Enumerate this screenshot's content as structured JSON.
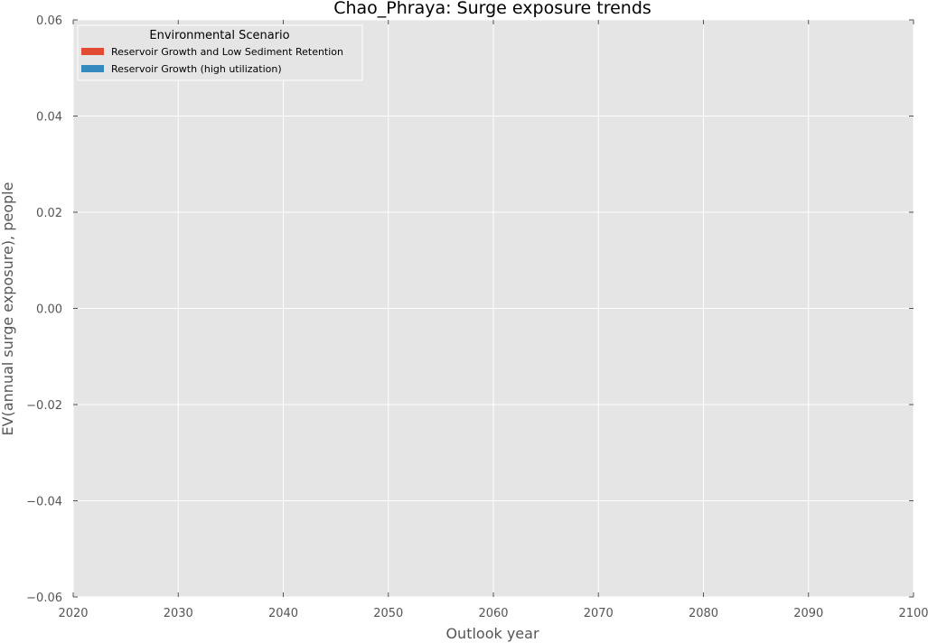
{
  "chart_data": {
    "type": "area",
    "title": "Chao_Phraya: Surge exposure trends",
    "xlabel": "Outlook year",
    "ylabel": "EV(annual surge exposure), people",
    "xlim": [
      2020,
      2100
    ],
    "ylim": [
      -0.06,
      0.06
    ],
    "x_ticks": [
      "2020",
      "2030",
      "2040",
      "2050",
      "2060",
      "2070",
      "2080",
      "2090",
      "2100"
    ],
    "y_ticks": [
      "0.06",
      "0.04",
      "0.02",
      "0.00",
      "−0.02",
      "−0.04",
      "−0.06"
    ],
    "grid": true,
    "legend_placement": "top-left",
    "legend_title": "Environmental Scenario",
    "series": [
      {
        "name": "Reservoir Growth and Low Sediment Retention",
        "color": "#E24A33",
        "values": []
      },
      {
        "name": "Reservoir Growth (high utilization)",
        "color": "#348ABD",
        "values": []
      }
    ],
    "colors": {
      "plot_background": "#E5E5E5",
      "grid": "#FFFFFF",
      "text": "#555555"
    }
  }
}
